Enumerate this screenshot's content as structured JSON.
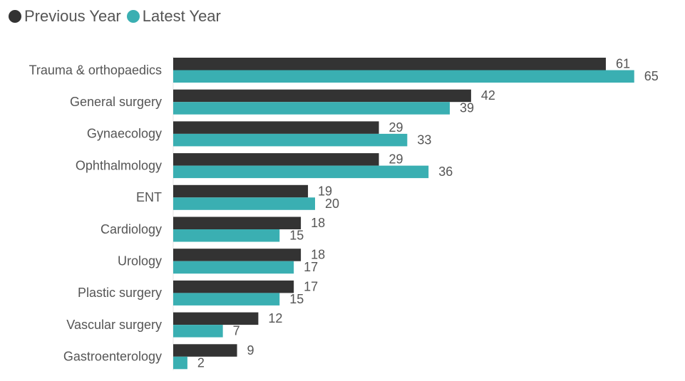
{
  "legend": [
    {
      "name": "Previous Year",
      "color": "#333333"
    },
    {
      "name": "Latest Year",
      "color": "#3AAFB2"
    }
  ],
  "chart_data": {
    "type": "bar",
    "orientation": "horizontal",
    "title": "",
    "xlabel": "",
    "ylabel": "",
    "categories": [
      "Trauma & orthopaedics",
      "General surgery",
      "Gynaecology",
      "Ophthalmology",
      "ENT",
      "Cardiology",
      "Urology",
      "Plastic surgery",
      "Vascular surgery",
      "Gastroenterology"
    ],
    "series": [
      {
        "name": "Previous Year",
        "color": "#333333",
        "values": [
          61,
          42,
          29,
          29,
          19,
          18,
          18,
          17,
          12,
          9
        ]
      },
      {
        "name": "Latest Year",
        "color": "#3AAFB2",
        "values": [
          65,
          39,
          33,
          36,
          20,
          15,
          17,
          15,
          7,
          2
        ]
      }
    ],
    "xlim": [
      0,
      65
    ],
    "grid": false,
    "legend_position": "top-left",
    "data_labels": true
  }
}
